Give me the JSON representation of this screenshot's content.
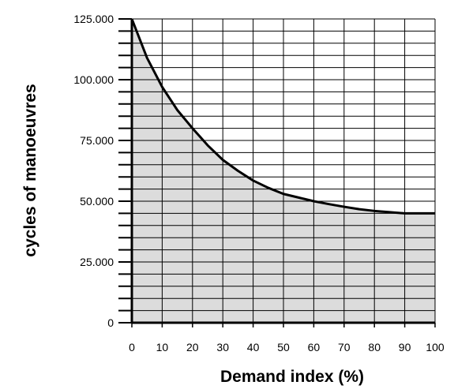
{
  "chart_data": {
    "type": "area",
    "title": "",
    "xlabel": "Demand index (%)",
    "ylabel": "cycles of manoeuvres",
    "xlim": [
      0,
      100
    ],
    "ylim": [
      0,
      125000
    ],
    "x_ticks": [
      "0",
      "10",
      "20",
      "30",
      "40",
      "50",
      "60",
      "70",
      "80",
      "90",
      "100"
    ],
    "y_ticks": [
      {
        "value": 0,
        "label": "0"
      },
      {
        "value": 25000,
        "label": "25.000"
      },
      {
        "value": 50000,
        "label": "50.000"
      },
      {
        "value": 75000,
        "label": "75.000"
      },
      {
        "value": 100000,
        "label": "100.000"
      },
      {
        "value": 125000,
        "label": "125.000"
      }
    ],
    "grid": true,
    "fill_color": "#dcdcdc",
    "line_color": "#000000",
    "x": [
      0,
      5,
      10,
      15,
      20,
      25,
      30,
      35,
      40,
      45,
      50,
      55,
      60,
      65,
      70,
      75,
      80,
      85,
      90,
      95,
      100
    ],
    "y": [
      125000,
      109000,
      97000,
      87500,
      80000,
      73000,
      67000,
      62500,
      58500,
      55500,
      53000,
      51500,
      50000,
      48800,
      47700,
      46700,
      46000,
      45500,
      45000,
      45000,
      45000
    ]
  }
}
